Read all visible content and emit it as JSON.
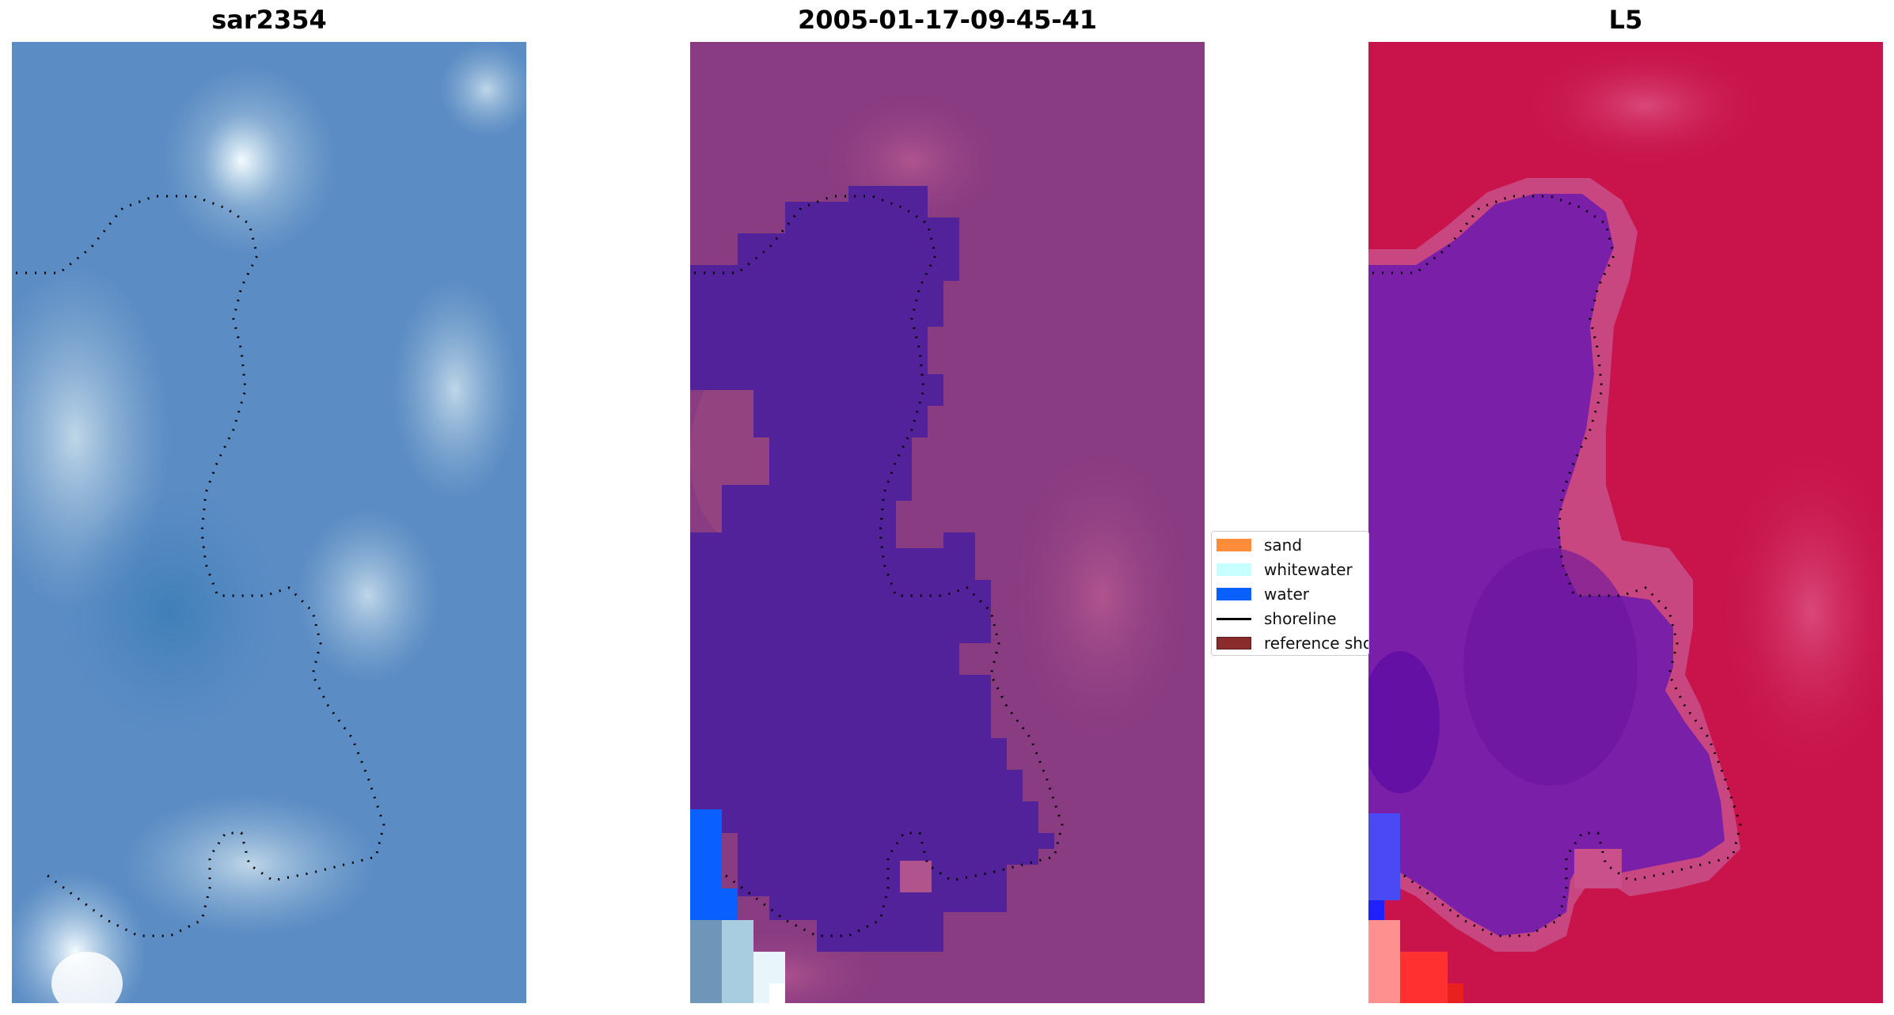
{
  "panels": [
    {
      "title": "sar2354",
      "image": "RGB satellite image (blue-grey pixels, bright whitewater at bottom-left)"
    },
    {
      "title": "2005-01-17-09-45-41",
      "image": "classified image (purple water polygon on magenta background)"
    },
    {
      "title": "L5",
      "image": "MNDWI index image (red background, purple water)"
    }
  ],
  "legend": {
    "items": [
      {
        "label": "sand",
        "color": "#ff8c3a",
        "kind": "patch"
      },
      {
        "label": "whitewater",
        "color": "#c8ffff",
        "kind": "patch"
      },
      {
        "label": "water",
        "color": "#0a5fff",
        "kind": "patch"
      },
      {
        "label": "shoreline",
        "color": "#000000",
        "kind": "line"
      },
      {
        "label": "reference shoreline",
        "color": "#8b2c2c",
        "kind": "patch"
      }
    ]
  },
  "colors": {
    "rgb_base": "#5b8cc4",
    "class_background": "#8a3c82",
    "class_water": "#52229a",
    "class_water_blue": "#0a5fff",
    "mndwi_background": "#c8144a",
    "mndwi_water": "#7a1fa8"
  }
}
